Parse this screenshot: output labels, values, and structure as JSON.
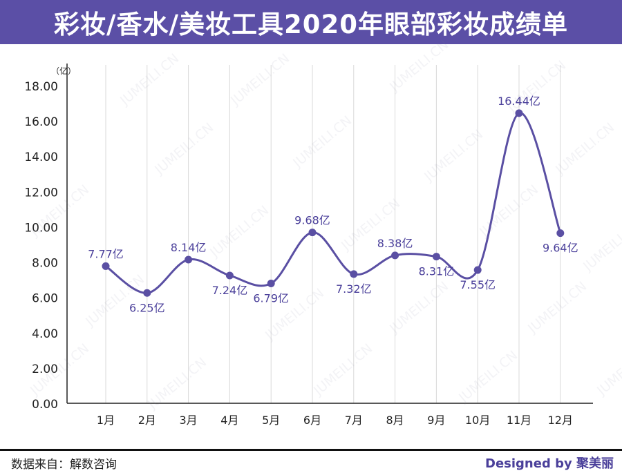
{
  "header": {
    "title": "彩妆/香水/美妆工具2020年眼部彩妆成绩单",
    "background": "#5b4fa6"
  },
  "footer": {
    "source": "数据来自：解数咨询",
    "designed_by": "Designed by 聚美丽"
  },
  "watermark_text": "JUMEILI.CN",
  "colors": {
    "line": "#5a4fa3",
    "label": "#4a3f9a",
    "grid": "#d9d9d9",
    "axis": "#222222"
  },
  "chart_data": {
    "type": "line",
    "smooth": true,
    "unit_label": "（亿）",
    "categories": [
      "1月",
      "2月",
      "3月",
      "4月",
      "5月",
      "6月",
      "7月",
      "8月",
      "9月",
      "10月",
      "11月",
      "12月"
    ],
    "values": [
      7.77,
      6.25,
      8.14,
      7.24,
      6.79,
      9.68,
      7.32,
      8.38,
      8.31,
      7.55,
      16.44,
      9.64
    ],
    "data_labels": [
      "7.77亿",
      "6.25亿",
      "8.14亿",
      "7.24亿",
      "6.79亿",
      "9.68亿",
      "7.32亿",
      "8.38亿",
      "8.31亿",
      "7.55亿",
      "16.44亿",
      "9.64亿"
    ],
    "label_positions": [
      "above",
      "below",
      "above",
      "below",
      "below",
      "above",
      "below",
      "above",
      "below",
      "below",
      "above",
      "below"
    ],
    "ylim": [
      0,
      18
    ],
    "yticks": [
      "0.00",
      "2.00",
      "4.00",
      "6.00",
      "8.00",
      "10.00",
      "12.00",
      "14.00",
      "16.00",
      "18.00"
    ],
    "ytick_values": [
      0,
      2,
      4,
      6,
      8,
      10,
      12,
      14,
      16,
      18
    ],
    "grid": "vertical",
    "legend": "none"
  }
}
